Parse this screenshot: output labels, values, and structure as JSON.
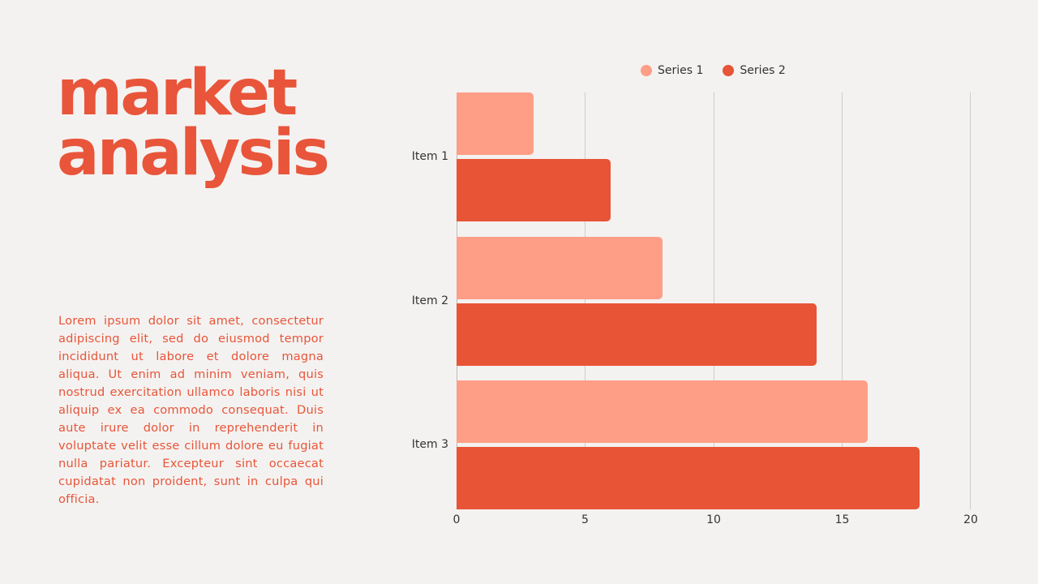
{
  "slide": {
    "title_line1": "market",
    "title_line2": "analysis",
    "body": "Lorem ipsum dolor sit amet, consectetur adipiscing elit, sed do eiusmod tempor incididunt ut labore et dolore magna aliqua. Ut enim ad minim veniam, quis nostrud exercitation ullamco laboris nisi ut aliquip ex ea commodo consequat. Duis aute irure dolor in reprehenderit in voluptate velit esse cillum dolore eu fugiat nulla pariatur. Excepteur sint occaecat cupidatat non proident, sunt in culpa qui officia."
  },
  "colors": {
    "accent": "#e8553a",
    "series1": "#ff9e87",
    "series2": "#e85436",
    "background": "#f4f2f0"
  },
  "chart_data": {
    "type": "bar",
    "orientation": "horizontal",
    "title": "",
    "categories": [
      "Item 1",
      "Item 2",
      "Item 3"
    ],
    "series": [
      {
        "name": "Series 1",
        "values": [
          3,
          8,
          16
        ],
        "color": "#ff9e87"
      },
      {
        "name": "Series 2",
        "values": [
          6,
          14,
          18
        ],
        "color": "#e85436"
      }
    ],
    "xlabel": "",
    "ylabel": "",
    "xlim": [
      0,
      20
    ],
    "xticks": [
      "0",
      "5",
      "10",
      "15",
      "20"
    ],
    "grid": "vertical",
    "legend_position": "top"
  }
}
